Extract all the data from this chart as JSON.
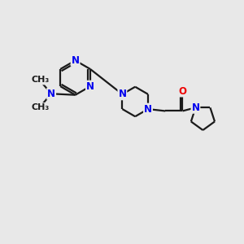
{
  "bg_color": "#e8e8e8",
  "bond_color": "#1a1a1a",
  "N_color": "#0000ee",
  "O_color": "#ee0000",
  "line_width": 1.6,
  "font_size": 8.5,
  "fig_size": [
    3.0,
    3.0
  ],
  "dpi": 100,
  "xlim": [
    0,
    10
  ],
  "ylim": [
    0,
    10
  ]
}
